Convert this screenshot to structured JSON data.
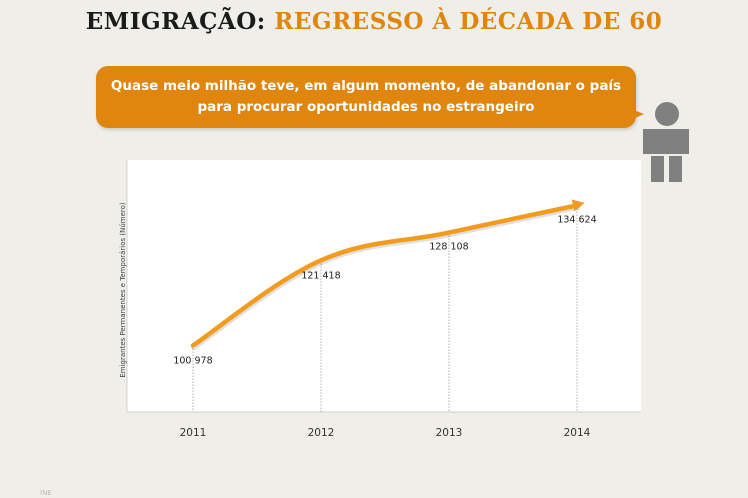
{
  "header": {
    "title_part1": "EMIGRAÇÃO:",
    "title_part2": "REGRESSO À DÉCADA DE 60"
  },
  "callout": {
    "text": "Quase meio milhão teve, em algum momento, de abandonar o país para procurar oportunidades no estrangeiro"
  },
  "icons": {
    "person": "person-icon"
  },
  "colors": {
    "accent": "#e0860e",
    "line": "#f29b1c",
    "person": "#808080",
    "background": "#efeee9"
  },
  "chart_data": {
    "type": "line",
    "x": [
      "2011",
      "2012",
      "2013",
      "2014"
    ],
    "values": [
      100978,
      121418,
      128108,
      134624
    ],
    "labels": [
      "100 978",
      "121 418",
      "128 108",
      "134 624"
    ],
    "ylabel": "Emigrantes Permanentes e Temporários (Número)",
    "ylim": [
      85000,
      140000
    ],
    "grid": false,
    "drop_lines": true,
    "end_marker": "arrow"
  },
  "footer": {
    "source": "INE"
  }
}
